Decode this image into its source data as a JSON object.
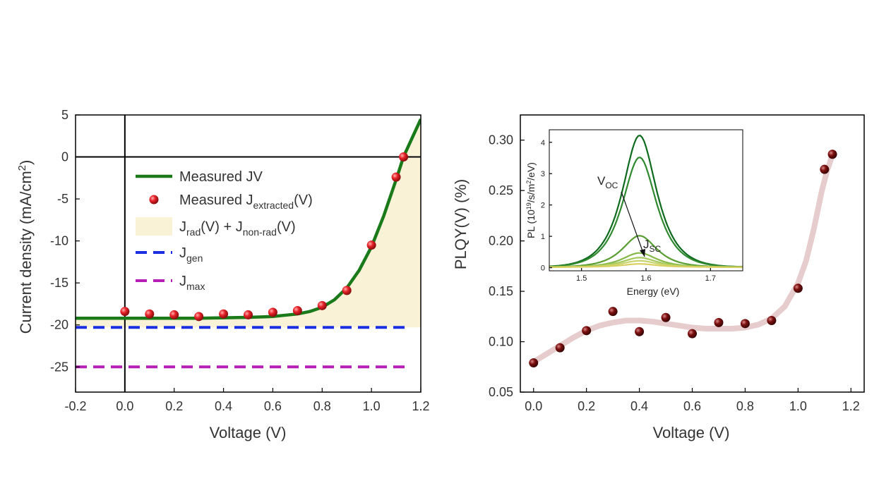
{
  "chart_data": [
    {
      "type": "line",
      "xlabel": "Voltage (V)",
      "ylabel_main": "Current density (mA/cm",
      "ylabel_sup": "2",
      "ylabel_end": ")",
      "xlim": [
        -0.2,
        1.2
      ],
      "ylim": [
        -28,
        5
      ],
      "xticks": [
        -0.2,
        0.0,
        0.2,
        0.4,
        0.6,
        0.8,
        1.0,
        1.2
      ],
      "xtick_labels": [
        "-0.2",
        "0.0",
        "0.2",
        "0.4",
        "0.6",
        "0.8",
        "1.0",
        "1.2"
      ],
      "yticks": [
        5,
        0,
        -5,
        -10,
        -15,
        -20,
        -25
      ],
      "ytick_labels": [
        "5",
        "0",
        "-5",
        "-10",
        "-15",
        "-20",
        "-25"
      ],
      "legend": [
        {
          "key": "jv",
          "main": "Measured JV",
          "sub": "",
          "tail": ""
        },
        {
          "key": "jext",
          "main": "Measured J",
          "sub": "extracted",
          "tail": "(V)"
        },
        {
          "key": "jrad",
          "main": "J",
          "sub": "rad",
          "tail": "(V) + J",
          "sub2": "non-rad",
          "tail2": "(V)"
        },
        {
          "key": "jgen",
          "main": "J",
          "sub": "gen",
          "tail": ""
        },
        {
          "key": "jmax",
          "main": "J",
          "sub": "max",
          "tail": ""
        }
      ],
      "series": {
        "jv_curve": {
          "x": [
            -0.2,
            0.0,
            0.1,
            0.2,
            0.3,
            0.4,
            0.5,
            0.6,
            0.7,
            0.75,
            0.8,
            0.85,
            0.9,
            0.95,
            1.0,
            1.05,
            1.1,
            1.13,
            1.15,
            1.2
          ],
          "y": [
            -19.2,
            -19.2,
            -19.2,
            -19.2,
            -19.2,
            -19.15,
            -19.1,
            -19.0,
            -18.7,
            -18.4,
            -17.9,
            -17.0,
            -15.6,
            -13.5,
            -10.7,
            -7.0,
            -2.7,
            0.0,
            1.3,
            4.5
          ]
        },
        "extracted": {
          "x": [
            0.0,
            0.1,
            0.2,
            0.3,
            0.4,
            0.5,
            0.6,
            0.7,
            0.8,
            0.9,
            1.0,
            1.1,
            1.13
          ],
          "y": [
            -18.4,
            -18.7,
            -18.8,
            -19.0,
            -18.7,
            -18.8,
            -18.5,
            -18.3,
            -17.7,
            -15.9,
            -10.5,
            -2.4,
            0.0
          ]
        },
        "jgen": -20.3,
        "jmax": -25.0
      },
      "colors": {
        "jv": "#1a7a1a",
        "extracted": "#e8232a",
        "fill": "#faf2d6",
        "jgen": "#1b2fe0",
        "jmax": "#b51fb5"
      }
    },
    {
      "type": "scatter",
      "xlabel": "Voltage (V)",
      "ylabel": "PLQY(V) (%)",
      "xlim": [
        -0.05,
        1.25
      ],
      "ylim": [
        0.05,
        0.325
      ],
      "xticks": [
        0.0,
        0.2,
        0.4,
        0.6,
        0.8,
        1.0,
        1.2
      ],
      "xtick_labels": [
        "0.0",
        "0.2",
        "0.4",
        "0.6",
        "0.8",
        "1.0",
        "1.2"
      ],
      "yticks": [
        0.05,
        0.1,
        0.15,
        0.2,
        0.25,
        0.3
      ],
      "ytick_labels": [
        "0.05",
        "0.10",
        "0.15",
        "0.20",
        "0.25",
        "0.30"
      ],
      "points": {
        "x": [
          0.0,
          0.1,
          0.2,
          0.3,
          0.4,
          0.5,
          0.6,
          0.7,
          0.8,
          0.9,
          1.0,
          1.1,
          1.13
        ],
        "y": [
          0.079,
          0.094,
          0.111,
          0.13,
          0.11,
          0.124,
          0.108,
          0.119,
          0.118,
          0.121,
          0.153,
          0.271,
          0.286
        ]
      },
      "trend": {
        "x": [
          0.0,
          0.05,
          0.1,
          0.15,
          0.2,
          0.25,
          0.3,
          0.35,
          0.4,
          0.45,
          0.5,
          0.55,
          0.6,
          0.65,
          0.7,
          0.75,
          0.8,
          0.85,
          0.9,
          0.95,
          1.0,
          1.03,
          1.06,
          1.09,
          1.11,
          1.13
        ],
        "y": [
          0.08,
          0.088,
          0.096,
          0.104,
          0.111,
          0.116,
          0.119,
          0.121,
          0.121,
          0.12,
          0.118,
          0.116,
          0.114,
          0.113,
          0.113,
          0.113,
          0.114,
          0.117,
          0.123,
          0.135,
          0.158,
          0.18,
          0.212,
          0.25,
          0.27,
          0.285
        ]
      },
      "colors": {
        "points": "#7d0f0f",
        "trend": "#e6cccc"
      }
    },
    {
      "type": "line",
      "inset": true,
      "xlabel": "Energy (eV)",
      "ylabel_pre": "PL (10",
      "ylabel_sup1": "19",
      "ylabel_mid": "/s/m",
      "ylabel_sup2": "2",
      "ylabel_end": "/eV)",
      "xlim": [
        1.45,
        1.75
      ],
      "ylim": [
        -0.1,
        4.4
      ],
      "xticks": [
        1.5,
        1.6,
        1.7
      ],
      "xtick_labels": [
        "1.5",
        "1.6",
        "1.7"
      ],
      "yticks": [
        0,
        1,
        2,
        3,
        4
      ],
      "ytick_labels": [
        "0",
        "1",
        "2",
        "3",
        "4"
      ],
      "peak_center": 1.59,
      "peak_width": 0.035,
      "amplitudes": [
        4.2,
        3.5,
        1.0,
        0.45,
        0.3,
        0.2,
        0.1
      ],
      "colors": [
        "#0e6b1e",
        "#2f8a2f",
        "#5a9e33",
        "#86b846",
        "#a5c95a",
        "#c8d46b",
        "#d9cf5e"
      ],
      "annotation_voc": "V",
      "annotation_voc_sub": "OC",
      "annotation_jsc": "J",
      "annotation_jsc_sub": "SC"
    }
  ]
}
